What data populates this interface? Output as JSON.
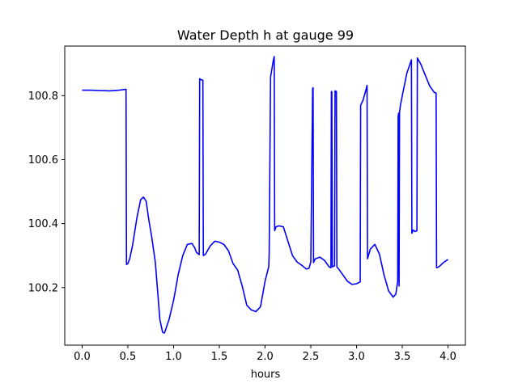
{
  "chart_data": {
    "type": "line",
    "title": "Water Depth h at gauge 99",
    "xlabel": "hours",
    "ylabel": "",
    "xlim": [
      -0.19,
      4.19
    ],
    "ylim": [
      100.02,
      100.955
    ],
    "x_ticks": [
      0.0,
      0.5,
      1.0,
      1.5,
      2.0,
      2.5,
      3.0,
      3.5,
      4.0
    ],
    "x_tick_labels": [
      "0.0",
      "0.5",
      "1.0",
      "1.5",
      "2.0",
      "2.5",
      "3.0",
      "3.5",
      "4.0"
    ],
    "y_ticks": [
      100.2,
      100.4,
      100.6,
      100.8
    ],
    "y_tick_labels": [
      "100.2",
      "100.4",
      "100.6",
      "100.8"
    ],
    "grid": false,
    "series": [
      {
        "color": "#0000ff",
        "x": [
          0.0,
          0.1,
          0.2,
          0.3,
          0.4,
          0.48,
          0.485,
          0.5,
          0.52,
          0.55,
          0.6,
          0.64,
          0.67,
          0.7,
          0.73,
          0.76,
          0.8,
          0.85,
          0.88,
          0.9,
          0.95,
          1.0,
          1.05,
          1.1,
          1.15,
          1.2,
          1.23,
          1.25,
          1.28,
          1.285,
          1.3,
          1.32,
          1.325,
          1.35,
          1.4,
          1.45,
          1.5,
          1.55,
          1.6,
          1.65,
          1.7,
          1.75,
          1.8,
          1.85,
          1.9,
          1.95,
          2.0,
          2.04,
          2.045,
          2.06,
          2.09,
          2.1,
          2.105,
          2.12,
          2.15,
          2.2,
          2.25,
          2.3,
          2.35,
          2.4,
          2.45,
          2.48,
          2.5,
          2.52,
          2.525,
          2.53,
          2.535,
          2.55,
          2.6,
          2.65,
          2.7,
          2.72,
          2.725,
          2.73,
          2.735,
          2.76,
          2.765,
          2.78,
          2.785,
          2.79,
          2.8,
          2.85,
          2.9,
          2.95,
          3.0,
          3.04,
          3.045,
          3.07,
          3.1,
          3.115,
          3.12,
          3.15,
          3.2,
          3.25,
          3.3,
          3.35,
          3.4,
          3.43,
          3.45,
          3.455,
          3.46,
          3.465,
          3.47,
          3.475,
          3.48,
          3.5,
          3.55,
          3.6,
          3.605,
          3.62,
          3.64,
          3.66,
          3.665,
          3.67,
          3.7,
          3.75,
          3.8,
          3.85,
          3.87,
          3.875,
          3.9,
          3.95,
          4.0
        ],
        "y": [
          100.817,
          100.817,
          100.816,
          100.815,
          100.817,
          100.82,
          100.272,
          100.275,
          100.29,
          100.33,
          100.42,
          100.475,
          100.483,
          100.47,
          100.41,
          100.36,
          100.28,
          100.1,
          100.06,
          100.058,
          100.1,
          100.16,
          100.24,
          100.3,
          100.335,
          100.338,
          100.325,
          100.31,
          100.303,
          100.853,
          100.85,
          100.848,
          100.3,
          100.305,
          100.33,
          100.345,
          100.342,
          100.335,
          100.315,
          100.275,
          100.255,
          100.205,
          100.145,
          100.13,
          100.125,
          100.14,
          100.22,
          100.265,
          100.308,
          100.858,
          100.91,
          100.922,
          100.378,
          100.39,
          100.393,
          100.39,
          100.345,
          100.3,
          100.28,
          100.27,
          100.258,
          100.26,
          100.28,
          100.822,
          100.825,
          100.278,
          100.282,
          100.29,
          100.295,
          100.285,
          100.265,
          100.262,
          100.813,
          100.812,
          100.265,
          100.268,
          100.815,
          100.813,
          100.265,
          100.262,
          100.26,
          100.24,
          100.22,
          100.21,
          100.212,
          100.218,
          100.77,
          100.785,
          100.815,
          100.832,
          100.29,
          100.32,
          100.335,
          100.305,
          100.24,
          100.19,
          100.17,
          100.18,
          100.22,
          100.735,
          100.745,
          100.205,
          100.748,
          100.76,
          100.77,
          100.8,
          100.87,
          100.912,
          100.37,
          100.38,
          100.375,
          100.378,
          100.918,
          100.915,
          100.9,
          100.865,
          100.83,
          100.81,
          100.808,
          100.262,
          100.265,
          100.278,
          100.288
        ]
      }
    ]
  }
}
